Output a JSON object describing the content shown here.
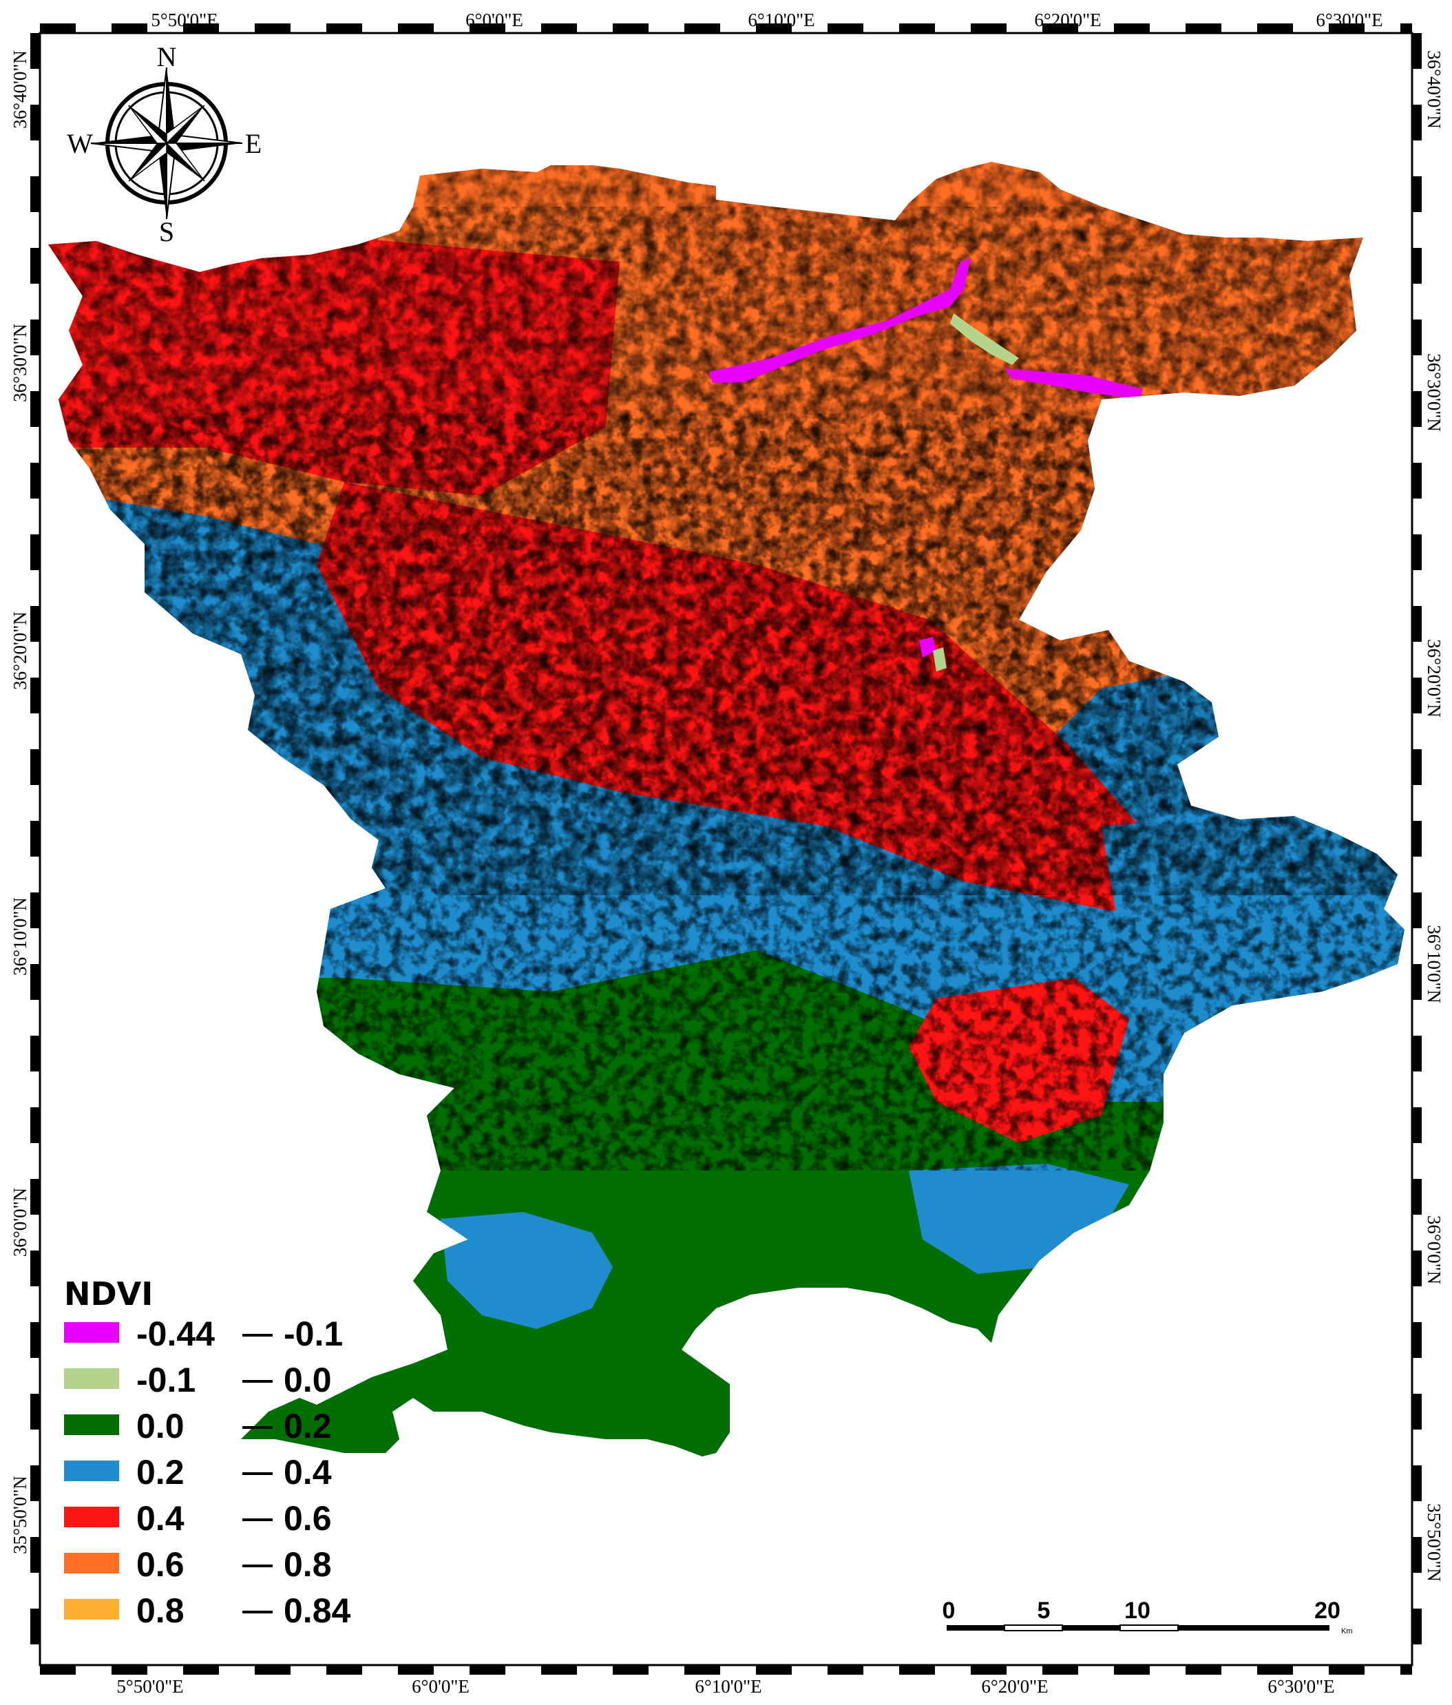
{
  "map": {
    "top_longitudes": [
      "5°50'0\"E",
      "6°0'0\"E",
      "6°10'0\"E",
      "6°20'0\"E",
      "6°30'0\"E"
    ],
    "bottom_longitudes": [
      "5°50'0\"E",
      "6°0'0\"E",
      "6°10'0\"E",
      "6°20'0\"E",
      "6°30'0\"E"
    ],
    "left_latitudes": [
      "36°40'0\"N",
      "36°30'0\"N",
      "36°20'0\"N",
      "36°10'0\"N",
      "36°0'0\"N",
      "35°50'0\"N"
    ],
    "right_latitudes": [
      "36°40'0\"N",
      "36°30'0\"N",
      "36°20'0\"N",
      "36°10'0\"N",
      "36°0'0\"N",
      "35°50'0\"N"
    ]
  },
  "compass": {
    "north": "N",
    "south": "S",
    "east": "E",
    "west": "W"
  },
  "legend": {
    "title": "NDVI",
    "classes": [
      {
        "from": "-0.44",
        "to": "-0.1",
        "color": "#e600ff"
      },
      {
        "from": "-0.1",
        "to": "0.0",
        "color": "#b4d48c"
      },
      {
        "from": "0.0",
        "to": "0.2",
        "color": "#006e00"
      },
      {
        "from": "0.2",
        "to": "0.4",
        "color": "#1e8ccd"
      },
      {
        "from": "0.4",
        "to": "0.6",
        "color": "#ff1414"
      },
      {
        "from": "0.6",
        "to": "0.8",
        "color": "#ff6e23"
      },
      {
        "from": "0.8",
        "to": "0.84",
        "color": "#ffaf32"
      }
    ]
  },
  "scale_bar": {
    "labels": [
      "0",
      "5",
      "10",
      "20"
    ],
    "unit": "Km"
  },
  "colors": {
    "frame": "#000000",
    "background": "#ffffff"
  }
}
